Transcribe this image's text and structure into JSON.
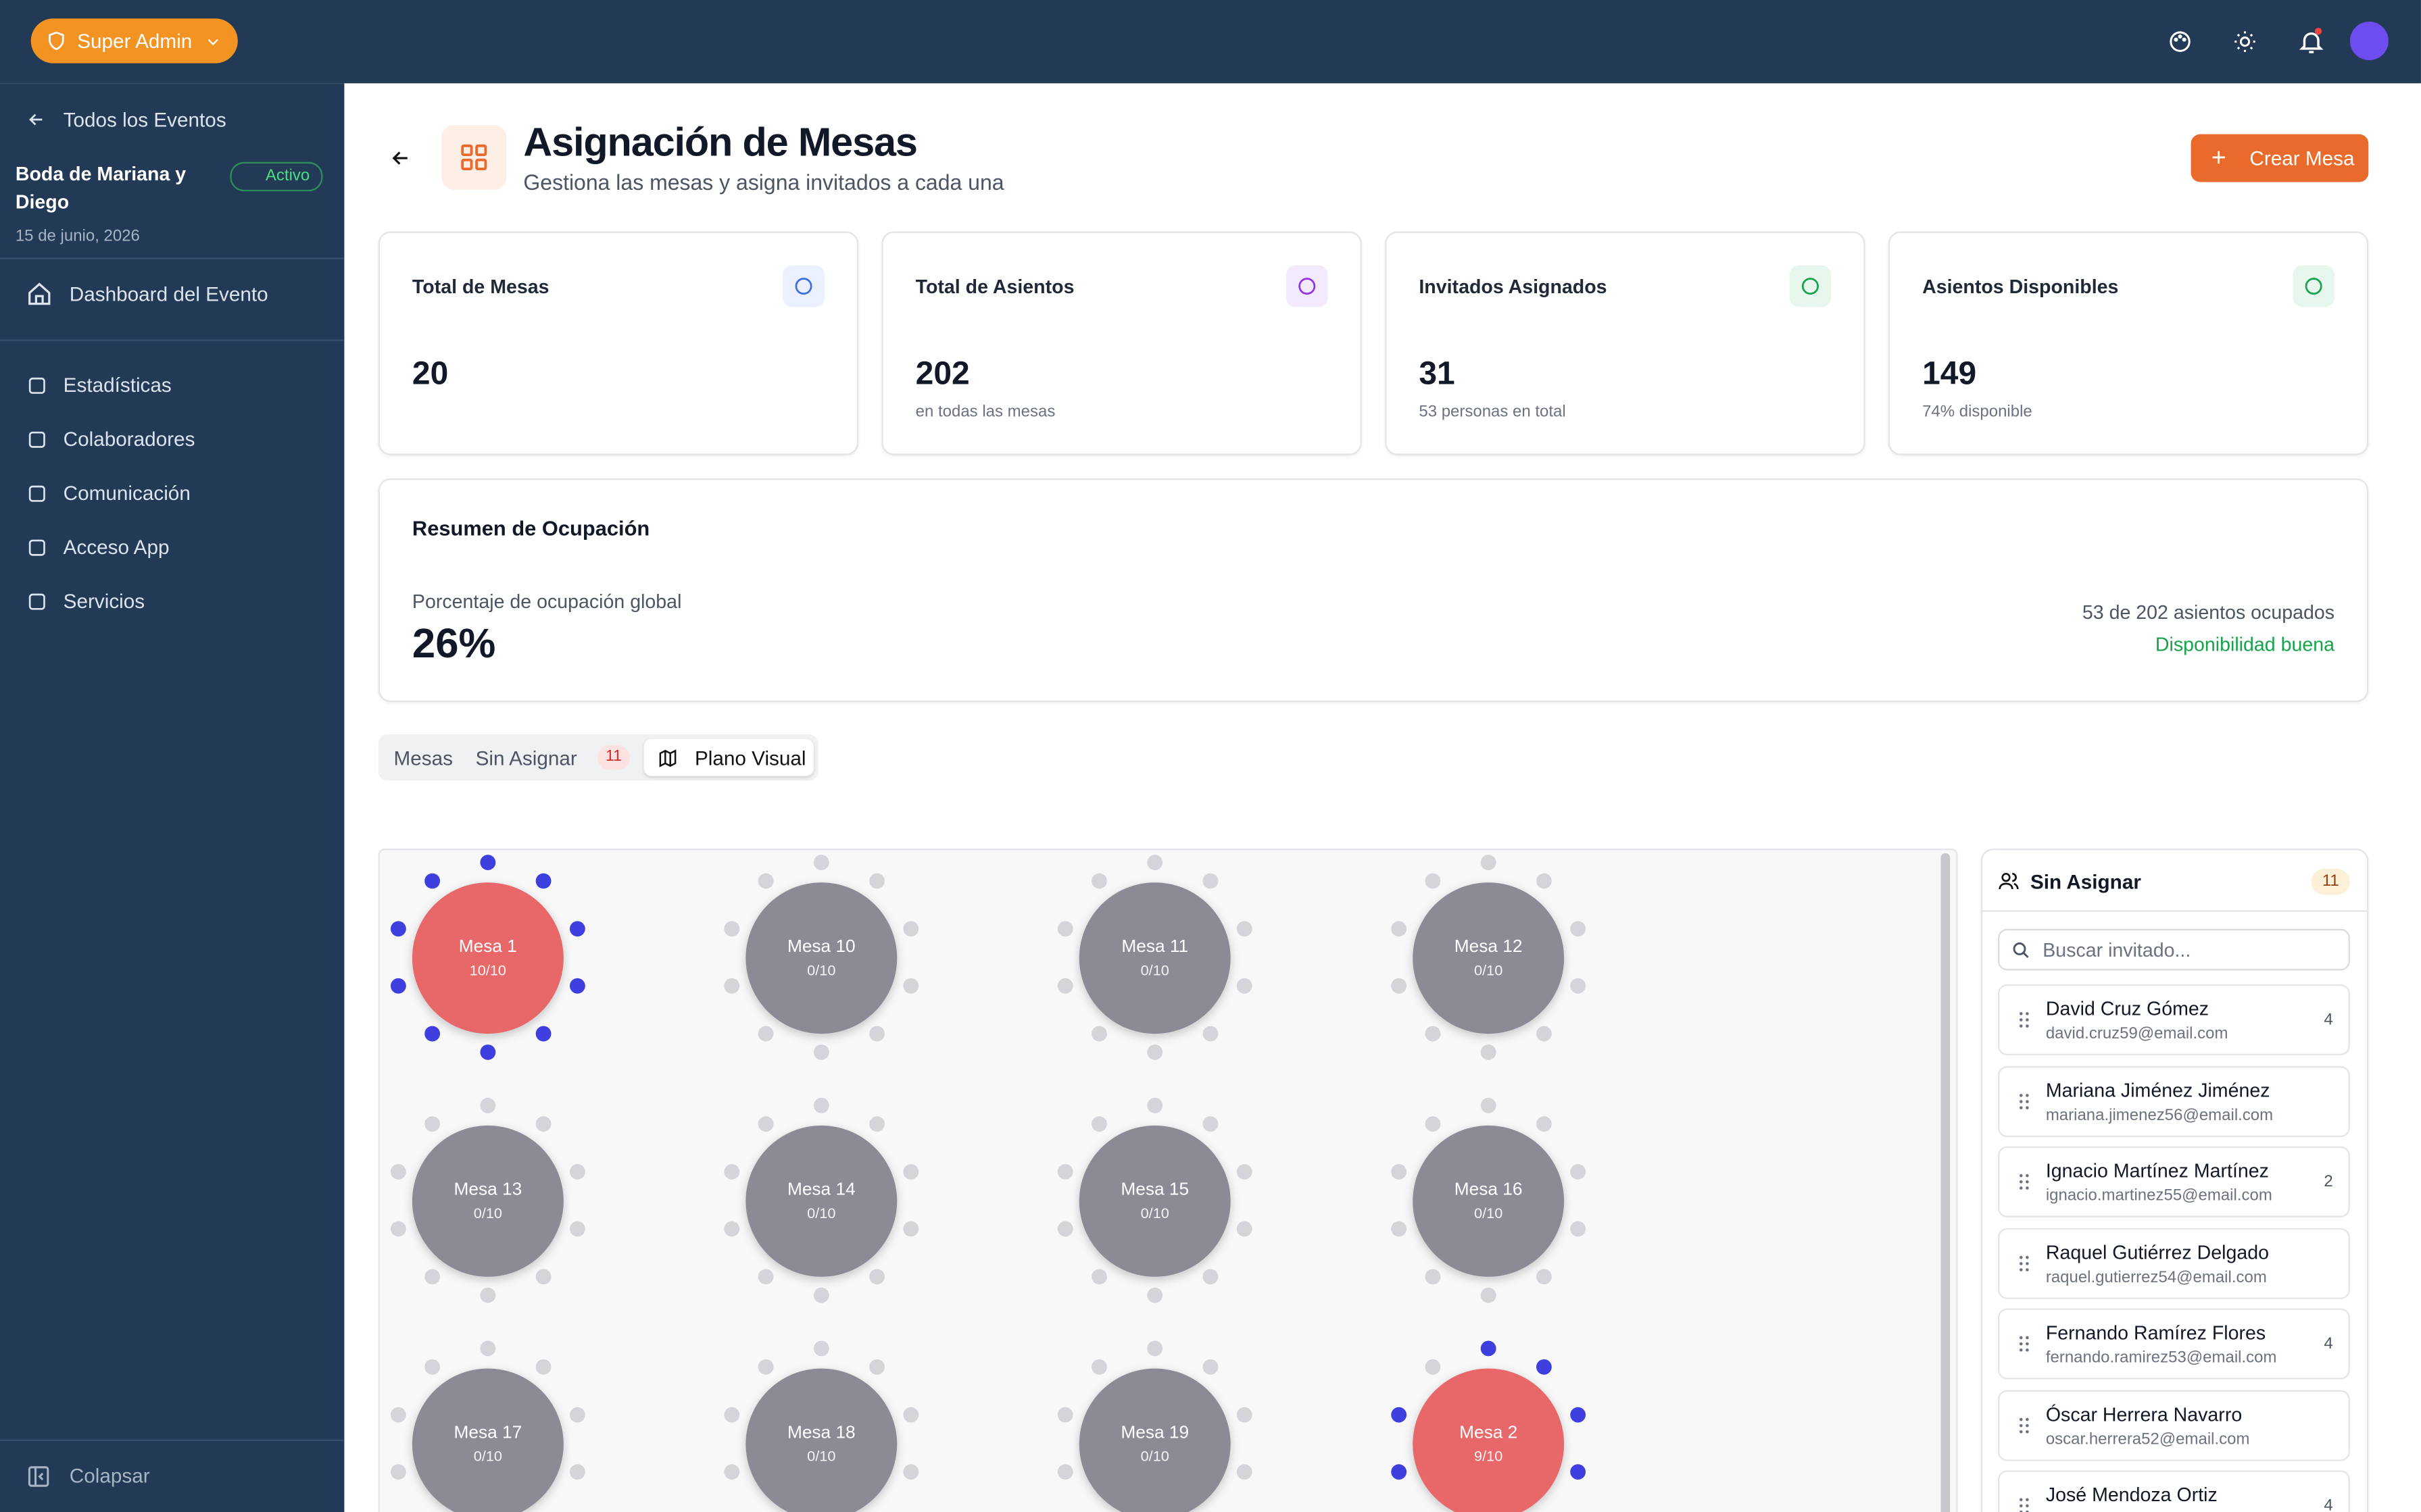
{
  "topbar": {
    "role": "Super Admin"
  },
  "sidebar": {
    "back": "Todos los Eventos",
    "event": {
      "name": "Boda de Mariana y Diego",
      "status": "Activo",
      "date": "15 de junio, 2026"
    },
    "dashboard": "Dashboard del Evento",
    "nav": [
      "Estadísticas",
      "Colaboradores",
      "Comunicación",
      "Acceso App",
      "Servicios"
    ],
    "collapse": "Colapsar"
  },
  "header": {
    "title": "Asignación de Mesas",
    "subtitle": "Gestiona las mesas y asigna invitados a cada una",
    "action": "Crear Mesa"
  },
  "stats": [
    {
      "label": "Total de Mesas",
      "value": 20
    },
    {
      "label": "Total de Asientos",
      "value": 202,
      "note": "en todas las mesas"
    },
    {
      "label": "Invitados Asignados",
      "value": 31,
      "note": "53 personas en total"
    },
    {
      "label": "Asientos Disponibles",
      "value": 149,
      "note": "74% disponible"
    }
  ],
  "occupancy": {
    "title": "Resumen de Ocupación",
    "label": "Porcentaje de ocupación global",
    "value": "26%",
    "summary": "53 de 202 asientos ocupados",
    "status": "Disponibilidad buena"
  },
  "tabs": [
    {
      "label": "Mesas"
    },
    {
      "label": "Sin Asignar",
      "badge": 11
    },
    {
      "label": "Plano Visual"
    }
  ],
  "floor": {
    "tables": [
      {
        "label": "Mesa 1",
        "occupancy": "10/10"
      },
      {
        "label": "Mesa 10",
        "occupancy": "0/10"
      },
      {
        "label": "Mesa 11",
        "occupancy": "0/10"
      },
      {
        "label": "Mesa 12",
        "occupancy": "0/10"
      },
      {
        "label": "Mesa 13",
        "occupancy": "0/10"
      },
      {
        "label": "Mesa 14",
        "occupancy": "0/10"
      },
      {
        "label": "Mesa 15",
        "occupancy": "0/10"
      },
      {
        "label": "Mesa 16",
        "occupancy": "0/10"
      },
      {
        "label": "Mesa 17",
        "occupancy": "0/10"
      },
      {
        "label": "Mesa 18",
        "occupancy": "0/10"
      },
      {
        "label": "Mesa 19",
        "occupancy": "0/10"
      },
      {
        "label": "Mesa 2",
        "occupancy": "9/10"
      }
    ]
  },
  "unassigned": {
    "title": "Sin Asignar",
    "count": 11,
    "search_placeholder": "Buscar invitado...",
    "guests": [
      {
        "name": "David Cruz Gómez",
        "email": "david.cruz59@email.com",
        "party": 4
      },
      {
        "name": "Mariana Jiménez Jiménez",
        "email": "mariana.jimenez56@email.com"
      },
      {
        "name": "Ignacio Martínez Martínez",
        "email": "ignacio.martinez55@email.com",
        "party": 2
      },
      {
        "name": "Raquel Gutiérrez Delgado",
        "email": "raquel.gutierrez54@email.com"
      },
      {
        "name": "Fernando Ramírez Flores",
        "email": "fernando.ramirez53@email.com",
        "party": 4
      },
      {
        "name": "Óscar Herrera Navarro",
        "email": "oscar.herrera52@email.com"
      },
      {
        "name": "José Mendoza Ortiz",
        "party": 4
      }
    ]
  }
}
